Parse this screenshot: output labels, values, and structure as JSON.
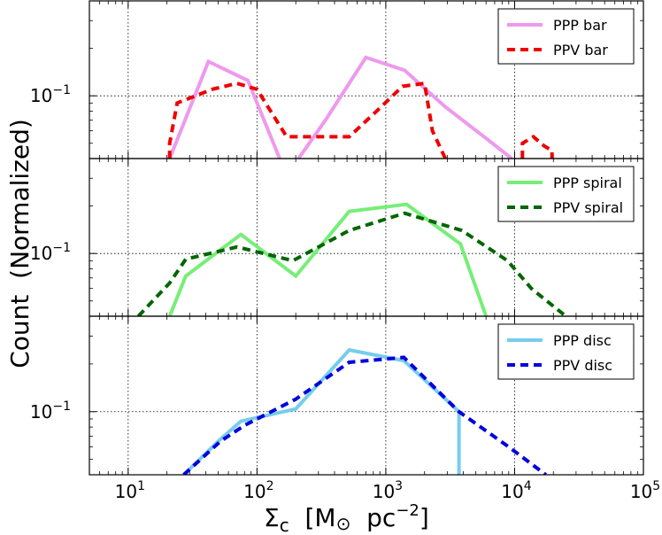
{
  "chart_data": [
    {
      "type": "line",
      "panel": "bar",
      "xscale": "log",
      "yscale": "log",
      "xlim": [
        5,
        100000
      ],
      "ylim": [
        0.04,
        0.4
      ],
      "grid": true,
      "legend_position": "top-right",
      "y_tick_label": {
        "base": "10",
        "exp": "−1"
      },
      "series": [
        {
          "name": "PPP bar",
          "style": "solid",
          "color": "#ee99ee",
          "x": [
            21,
            42,
            85,
            150
          ],
          "y": [
            0.04,
            0.165,
            0.125,
            0.04
          ]
        },
        {
          "name": "PPP bar",
          "style": "solid",
          "color": "#ee99ee",
          "x": [
            210,
            340,
            700,
            1400,
            2900,
            5800,
            9500
          ],
          "y": [
            0.04,
            0.07,
            0.175,
            0.145,
            0.085,
            0.055,
            0.04
          ]
        },
        {
          "name": "PPV bar",
          "style": "dashed",
          "color": "#ee0000",
          "x": [
            21,
            21,
            24,
            45,
            70,
            100,
            170,
            260,
            520,
            850,
            1350,
            2000,
            2300,
            2900
          ],
          "y": [
            0.04,
            0.05,
            0.09,
            0.11,
            0.12,
            0.11,
            0.055,
            0.055,
            0.055,
            0.08,
            0.115,
            0.12,
            0.06,
            0.04
          ]
        },
        {
          "name": "PPV bar",
          "style": "dashed",
          "color": "#ee0000",
          "x": [
            11500,
            11500,
            14000,
            17000,
            19500,
            19500
          ],
          "y": [
            0.04,
            0.05,
            0.055,
            0.048,
            0.045,
            0.04
          ]
        }
      ],
      "legend": [
        {
          "label": "PPP bar",
          "style": "solid",
          "color": "#ee99ee"
        },
        {
          "label": "PPV bar",
          "style": "dashed",
          "color": "#ee0000"
        }
      ]
    },
    {
      "type": "line",
      "panel": "spiral",
      "xscale": "log",
      "yscale": "log",
      "xlim": [
        5,
        100000
      ],
      "ylim": [
        0.04,
        0.4
      ],
      "grid": true,
      "legend_position": "top-right",
      "y_tick_label": {
        "base": "10",
        "exp": "−1"
      },
      "series": [
        {
          "name": "PPP spiral",
          "style": "solid",
          "color": "#77ee77",
          "x": [
            21,
            28,
            75,
            200,
            520,
            1450,
            3800,
            6000
          ],
          "y": [
            0.04,
            0.072,
            0.132,
            0.072,
            0.185,
            0.205,
            0.115,
            0.04
          ]
        },
        {
          "name": "PPV spiral",
          "style": "dashed",
          "color": "#006600",
          "x": [
            12,
            21,
            28,
            70,
            190,
            520,
            1400,
            3900,
            8800,
            13500,
            25000
          ],
          "y": [
            0.04,
            0.065,
            0.092,
            0.11,
            0.09,
            0.14,
            0.18,
            0.14,
            0.09,
            0.06,
            0.04
          ]
        }
      ],
      "legend": [
        {
          "label": "PPP spiral",
          "style": "solid",
          "color": "#77ee77"
        },
        {
          "label": "PPV spiral",
          "style": "dashed",
          "color": "#006600"
        }
      ]
    },
    {
      "type": "line",
      "panel": "disc",
      "xscale": "log",
      "yscale": "log",
      "xlim": [
        5,
        100000
      ],
      "ylim": [
        0.04,
        0.4
      ],
      "grid": true,
      "legend_position": "top-right",
      "y_tick_label": {
        "base": "10",
        "exp": "−1"
      },
      "series": [
        {
          "name": "PPP disc",
          "style": "solid",
          "color": "#77ccee",
          "x": [
            27,
            52,
            75,
            200,
            520,
            1380,
            3700,
            3700
          ],
          "y": [
            0.04,
            0.067,
            0.087,
            0.104,
            0.245,
            0.21,
            0.1,
            0.04
          ]
        },
        {
          "name": "PPV disc",
          "style": "dashed",
          "color": "#0000dd",
          "x": [
            27,
            52,
            80,
            200,
            520,
            1380,
            3700,
            9000,
            17500
          ],
          "y": [
            0.04,
            0.065,
            0.082,
            0.12,
            0.205,
            0.22,
            0.1,
            0.06,
            0.04
          ]
        }
      ],
      "legend": [
        {
          "label": "PPP disc",
          "style": "solid",
          "color": "#77ccee"
        },
        {
          "label": "PPV disc",
          "style": "dashed",
          "color": "#0000dd"
        }
      ]
    }
  ],
  "axes": {
    "x_ticks": [
      {
        "value": 10,
        "base": "10",
        "exp": "1"
      },
      {
        "value": 100,
        "base": "10",
        "exp": "2"
      },
      {
        "value": 1000,
        "base": "10",
        "exp": "3"
      },
      {
        "value": 10000,
        "base": "10",
        "exp": "4"
      },
      {
        "value": 100000,
        "base": "10",
        "exp": "5"
      }
    ],
    "xlabel": {
      "prefix": "Σ",
      "sub": "c",
      "units_open": "  [M",
      "units_sun": "⊙",
      "units_mid": "  pc",
      "units_exp": "−2",
      "units_close": "]"
    },
    "ylabel": "Count  (Normalized)"
  }
}
